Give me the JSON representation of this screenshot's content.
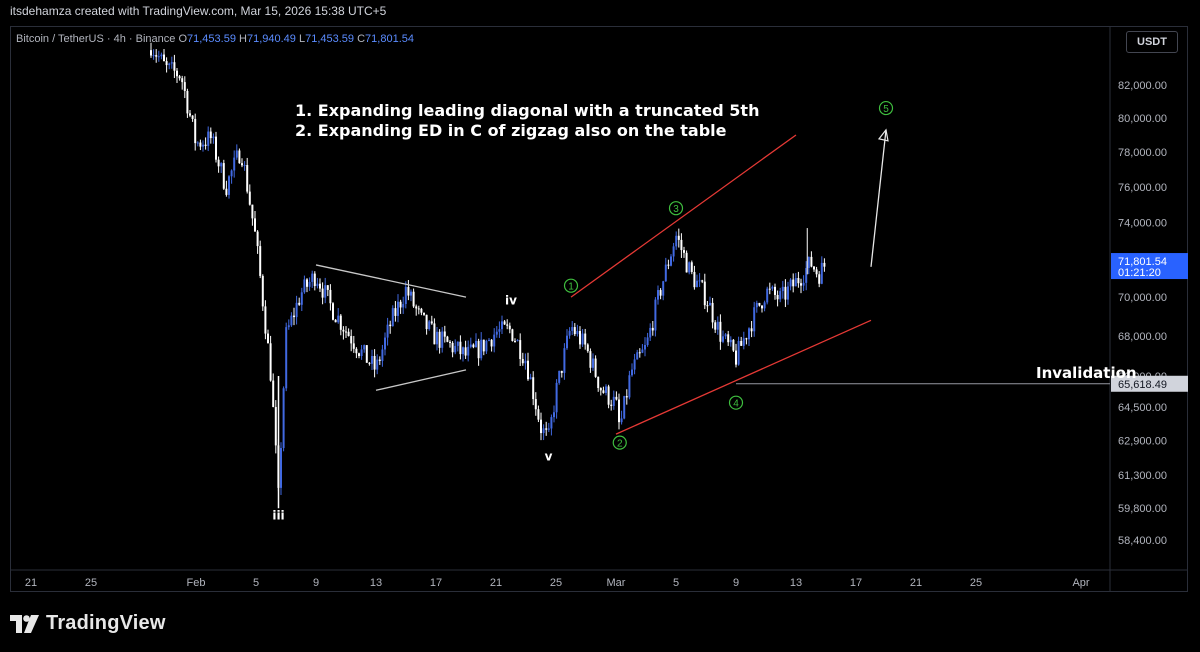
{
  "header": {
    "attribution": "itsdehamza created with TradingView.com, Mar 15, 2026 15:38 UTC+5"
  },
  "legend": {
    "symbol": "Bitcoin / TetherUS · 4h · Binance",
    "open_label": "O",
    "open": "71,453.59",
    "high_label": "H",
    "high": "71,940.49",
    "low_label": "L",
    "low": "71,453.59",
    "close_label": "C",
    "close": "71,801.54"
  },
  "currency_button": "USDT",
  "branding": {
    "logo_text": "TradingView"
  },
  "annotations": {
    "line1": "1. Expanding leading diagonal with a truncated 5th",
    "line2": "2. Expanding ED in C of zigzag also on the table",
    "invalidation": "Invalidation"
  },
  "colors": {
    "background": "#000000",
    "candle_up": "#4169e1",
    "candle_down": "#ffffff",
    "wave_label": "#3fbf3f",
    "diagonal_lines": "#e53935",
    "triangle_lines": "#c8c8c8",
    "price_badge": "#2962ff",
    "invalidation_badge": "#d1d4dc"
  },
  "chart_data": {
    "type": "candlestick",
    "title": "Bitcoin / TetherUS · 4h · Binance",
    "timeframe": "4h",
    "y_axis": {
      "ticks": [
        82000,
        80000,
        78000,
        76000,
        74000,
        72000,
        70000,
        68000,
        66000,
        64500,
        62900,
        61300,
        59800,
        58400
      ],
      "tick_labels": [
        "82,000.00",
        "80,000.00",
        "78,000.00",
        "76,000.00",
        "74,000.00",
        "72,000.00",
        "70,000.00",
        "68,000.00",
        "66,000.00",
        "64,500.00",
        "62,900.00",
        "61,300.00",
        "59,800.00",
        "58,400.00"
      ],
      "scale": "log"
    },
    "x_axis": {
      "tick_labels": [
        "21",
        "25",
        "Feb",
        "5",
        "9",
        "13",
        "17",
        "21",
        "25",
        "Mar",
        "5",
        "9",
        "13",
        "17",
        "21",
        "25",
        "Apr"
      ],
      "tick_dates": [
        "2026-01-21",
        "2026-01-25",
        "2026-02-01",
        "2026-02-05",
        "2026-02-09",
        "2026-02-13",
        "2026-02-17",
        "2026-02-21",
        "2026-02-25",
        "2026-03-01",
        "2026-03-05",
        "2026-03-09",
        "2026-03-13",
        "2026-03-17",
        "2026-03-21",
        "2026-03-25",
        "2026-04-01"
      ]
    },
    "last_price": {
      "value": "71,801.54",
      "countdown": "01:21:20"
    },
    "invalidation_level": {
      "value": "65,618.49",
      "price": 65618.49
    },
    "price_path": [
      [
        "2026-01-29",
        84500
      ],
      [
        "2026-01-30",
        83000
      ],
      [
        "2026-01-31",
        82600
      ],
      [
        "2026-02-01",
        78500
      ],
      [
        "2026-02-02",
        78800
      ],
      [
        "2026-02-03",
        76000
      ],
      [
        "2026-02-04",
        78200
      ],
      [
        "2026-02-05",
        73000
      ],
      [
        "2026-02-06",
        66000
      ],
      [
        "2026-02-06T12:00",
        60200
      ],
      [
        "2026-02-07",
        68000
      ],
      [
        "2026-02-08",
        70200
      ],
      [
        "2026-02-09",
        71200
      ],
      [
        "2026-02-10",
        69500
      ],
      [
        "2026-02-11",
        68300
      ],
      [
        "2026-02-12",
        67200
      ],
      [
        "2026-02-13",
        66300
      ],
      [
        "2026-02-14",
        68700
      ],
      [
        "2026-02-15",
        70400
      ],
      [
        "2026-02-16",
        68800
      ],
      [
        "2026-02-17",
        67900
      ],
      [
        "2026-02-18",
        67500
      ],
      [
        "2026-02-19",
        67000
      ],
      [
        "2026-02-20",
        67400
      ],
      [
        "2026-02-21",
        68200
      ],
      [
        "2026-02-22",
        68300
      ],
      [
        "2026-02-23",
        66800
      ],
      [
        "2026-02-24",
        63500
      ],
      [
        "2026-02-24T12:00",
        62900
      ],
      [
        "2026-02-25",
        65200
      ],
      [
        "2026-02-26",
        68500
      ],
      [
        "2026-02-27",
        67400
      ],
      [
        "2026-02-28",
        65400
      ],
      [
        "2026-03-01",
        64600
      ],
      [
        "2026-03-01T06:00",
        63400
      ],
      [
        "2026-03-02",
        66200
      ],
      [
        "2026-03-03",
        67400
      ],
      [
        "2026-03-04",
        70500
      ],
      [
        "2026-03-05",
        73300
      ],
      [
        "2026-03-06",
        71200
      ],
      [
        "2026-03-07",
        70000
      ],
      [
        "2026-03-08",
        68000
      ],
      [
        "2026-03-09",
        66900
      ],
      [
        "2026-03-10",
        68700
      ],
      [
        "2026-03-11",
        70300
      ],
      [
        "2026-03-12",
        69900
      ],
      [
        "2026-03-13",
        70800
      ],
      [
        "2026-03-14",
        71800
      ],
      [
        "2026-03-14T12:00",
        71200
      ],
      [
        "2026-03-15",
        71801.54
      ]
    ],
    "wave_labels": [
      {
        "text": "iii",
        "date": "2026-02-06T12:00",
        "price": 60200,
        "style": "roman"
      },
      {
        "text": "iv",
        "date": "2026-02-22",
        "price": 69200,
        "style": "roman"
      },
      {
        "text": "v",
        "date": "2026-02-24T12:00",
        "price": 62900,
        "style": "roman"
      },
      {
        "text": "1",
        "date": "2026-02-26",
        "price": 70600,
        "style": "circled"
      },
      {
        "text": "2",
        "date": "2026-03-01T06:00",
        "price": 62800,
        "style": "circled"
      },
      {
        "text": "3",
        "date": "2026-03-05",
        "price": 74800,
        "style": "circled"
      },
      {
        "text": "4",
        "date": "2026-03-09",
        "price": 64700,
        "style": "circled"
      },
      {
        "text": "5",
        "date": "2026-03-19",
        "price": 80600,
        "style": "circled"
      }
    ],
    "trendlines": [
      {
        "name": "triangle-upper",
        "from": [
          "2026-02-09",
          71700
        ],
        "to": [
          "2026-02-19",
          70000
        ],
        "color": "#c8c8c8"
      },
      {
        "name": "triangle-lower",
        "from": [
          "2026-02-13",
          65300
        ],
        "to": [
          "2026-02-19",
          66300
        ],
        "color": "#c8c8c8"
      },
      {
        "name": "diagonal-upper",
        "from": [
          "2026-02-26",
          70000
        ],
        "to": [
          "2026-03-13",
          79000
        ],
        "color": "#e53935"
      },
      {
        "name": "diagonal-lower",
        "from": [
          "2026-03-01",
          63200
        ],
        "to": [
          "2026-03-18",
          68800
        ],
        "color": "#e53935"
      },
      {
        "name": "projection-arrow",
        "from": [
          "2026-03-18",
          71600
        ],
        "to": [
          "2026-03-19",
          79300
        ],
        "color": "#e8e8e8"
      },
      {
        "name": "invalidation-line",
        "from": [
          "2026-03-09",
          65618.49
        ],
        "to": [
          "2026-04-05",
          65618.49
        ],
        "color": "#9598a1"
      }
    ]
  }
}
